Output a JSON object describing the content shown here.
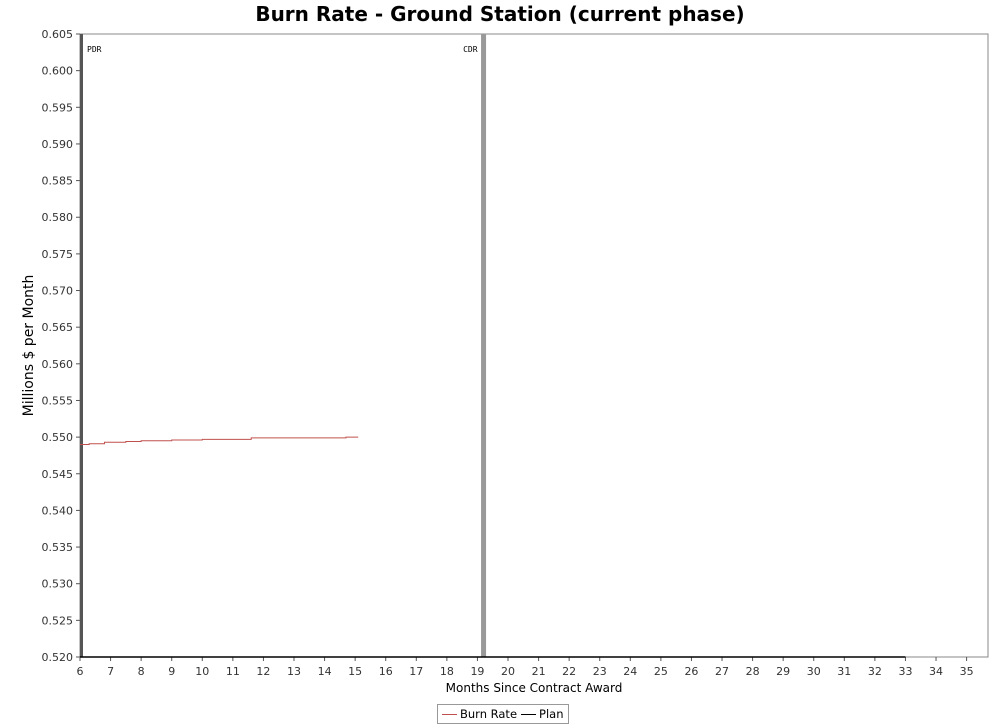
{
  "chart_data": {
    "type": "line",
    "title": "Burn Rate - Ground Station (current phase)",
    "xlabel": "Months Since Contract Award",
    "ylabel": "Millions $ per Month",
    "xlim": [
      6,
      35.7
    ],
    "ylim": [
      0.52,
      0.605
    ],
    "x_ticks": [
      6,
      7,
      8,
      9,
      10,
      11,
      12,
      13,
      14,
      15,
      16,
      17,
      18,
      19,
      20,
      21,
      22,
      23,
      24,
      25,
      26,
      27,
      28,
      29,
      30,
      31,
      32,
      33,
      34,
      35
    ],
    "y_ticks": [
      "0.520",
      "0.525",
      "0.530",
      "0.535",
      "0.540",
      "0.545",
      "0.550",
      "0.555",
      "0.560",
      "0.565",
      "0.570",
      "0.575",
      "0.580",
      "0.585",
      "0.590",
      "0.595",
      "0.600",
      "0.605"
    ],
    "grid": false,
    "legend_position": "bottom-center",
    "markers": [
      {
        "label": "PDR",
        "x": 6.0,
        "color": "#555555"
      },
      {
        "label": "CDR",
        "x": 19.2,
        "color": "#999999"
      }
    ],
    "series": [
      {
        "name": "Burn Rate",
        "color": "#c0504d",
        "points": [
          [
            6.0,
            0.549
          ],
          [
            6.3,
            0.549
          ],
          [
            6.3,
            0.5491
          ],
          [
            6.8,
            0.5491
          ],
          [
            6.8,
            0.5493
          ],
          [
            7.5,
            0.5493
          ],
          [
            7.5,
            0.5494
          ],
          [
            8.0,
            0.5494
          ],
          [
            8.0,
            0.5495
          ],
          [
            9.0,
            0.5495
          ],
          [
            9.0,
            0.5496
          ],
          [
            10.0,
            0.5496
          ],
          [
            10.0,
            0.5497
          ],
          [
            11.6,
            0.5497
          ],
          [
            11.6,
            0.5499
          ],
          [
            14.7,
            0.5499
          ],
          [
            14.7,
            0.55
          ],
          [
            15.1,
            0.55
          ]
        ]
      },
      {
        "name": "Plan",
        "color": "#000000",
        "points": [
          [
            6.0,
            0.52
          ],
          [
            33.0,
            0.52
          ]
        ]
      }
    ]
  }
}
